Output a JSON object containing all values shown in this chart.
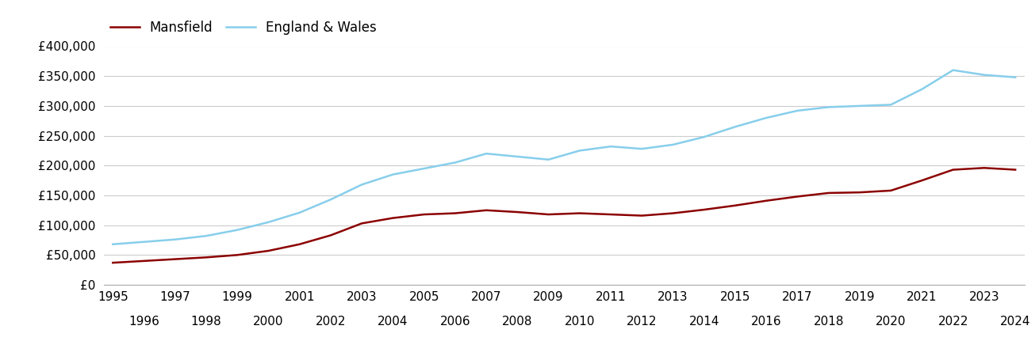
{
  "years": [
    1995,
    1996,
    1997,
    1998,
    1999,
    2000,
    2001,
    2002,
    2003,
    2004,
    2005,
    2006,
    2007,
    2008,
    2009,
    2010,
    2011,
    2012,
    2013,
    2014,
    2015,
    2016,
    2017,
    2018,
    2019,
    2020,
    2021,
    2022,
    2023,
    2024
  ],
  "mansfield": [
    37000,
    40000,
    43000,
    46000,
    50000,
    57000,
    68000,
    83000,
    103000,
    112000,
    118000,
    120000,
    125000,
    122000,
    118000,
    120000,
    118000,
    116000,
    120000,
    126000,
    133000,
    141000,
    148000,
    154000,
    155000,
    158000,
    175000,
    193000,
    196000,
    193000
  ],
  "england_wales": [
    68000,
    72000,
    76000,
    82000,
    92000,
    105000,
    121000,
    143000,
    168000,
    185000,
    195000,
    205000,
    220000,
    215000,
    210000,
    225000,
    232000,
    228000,
    235000,
    248000,
    265000,
    280000,
    292000,
    298000,
    300000,
    302000,
    328000,
    360000,
    352000,
    348000
  ],
  "mansfield_color": "#8b0000",
  "england_wales_color": "#87CEEB",
  "mansfield_label": "Mansfield",
  "england_wales_label": "England & Wales",
  "ylim": [
    0,
    400000
  ],
  "yticks": [
    0,
    50000,
    100000,
    150000,
    200000,
    250000,
    300000,
    350000,
    400000
  ],
  "background_color": "#ffffff",
  "grid_color": "#cccccc",
  "line_width": 1.8,
  "legend_fontsize": 12,
  "tick_fontsize": 11
}
